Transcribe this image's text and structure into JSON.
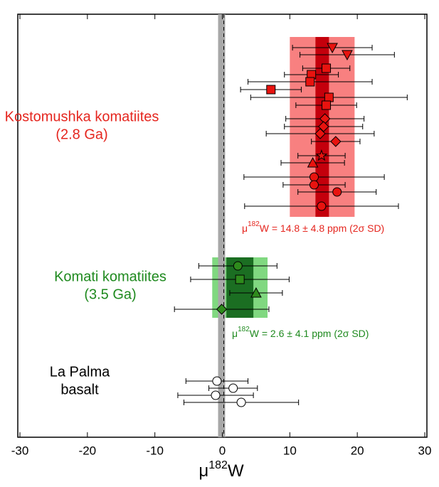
{
  "chart_data": {
    "type": "scatter",
    "xlabel": {
      "base": "μ",
      "sup": "182",
      "rest": "W"
    },
    "xlim": [
      -30,
      30
    ],
    "xticks": [
      -30,
      -20,
      -10,
      0,
      10,
      20,
      30
    ],
    "reference_line": 0,
    "groups": [
      {
        "name": [
          "Kostomushka komatiites",
          "(2.8 Ga)"
        ],
        "color": "#e8130f",
        "text_color": "#e5261f",
        "band": {
          "mean": 14.8,
          "sd": 4.8,
          "inner": 1.0,
          "color": "#f88080",
          "inner_color": "#c4000c"
        },
        "stat_label": {
          "base": "μ",
          "sup": "182",
          "rest": "W = 14.8 ± 4.8 ppm (2σ SD)"
        },
        "points": [
          {
            "marker": "triangle-down",
            "x": 16.3,
            "err": 5.9
          },
          {
            "marker": "triangle-down",
            "x": 18.5,
            "err": 7.0
          },
          {
            "marker": "square",
            "x": 15.4,
            "err": 3.5
          },
          {
            "marker": "square",
            "x": 13.2,
            "err": 4.0
          },
          {
            "marker": "square",
            "x": 13.0,
            "err": 9.2
          },
          {
            "marker": "square",
            "x": 7.2,
            "err": 4.5
          },
          {
            "marker": "square",
            "x": 15.8,
            "err": 11.6
          },
          {
            "marker": "square",
            "x": 15.4,
            "err": 4.5
          },
          {
            "marker": "diamond",
            "x": 15.2,
            "err": 5.8
          },
          {
            "marker": "diamond",
            "x": 15.0,
            "err": 5.8
          },
          {
            "marker": "diamond",
            "x": 14.5,
            "err": 8.0
          },
          {
            "marker": "diamond",
            "x": 16.8,
            "err": 3.6
          },
          {
            "marker": "star",
            "x": 14.7,
            "err": 3.5
          },
          {
            "marker": "triangle-up",
            "x": 13.4,
            "err": 4.7
          },
          {
            "marker": "circle",
            "x": 13.6,
            "err": 10.4
          },
          {
            "marker": "circle",
            "x": 13.6,
            "err": 4.6
          },
          {
            "marker": "circle",
            "x": 17.0,
            "err": 5.8
          },
          {
            "marker": "circle",
            "x": 14.7,
            "err": 11.4
          }
        ]
      },
      {
        "name": [
          "Komati komatiites",
          "(3.5 Ga)"
        ],
        "color": "#2e8b1c",
        "text_color": "#1f8a1f",
        "band": {
          "mean": 2.6,
          "sd": 4.1,
          "inner": 2.0,
          "color": "#80d880",
          "inner_color": "#1b6e22"
        },
        "stat_label": {
          "base": "μ",
          "sup": "182",
          "rest": "W = 2.6 ± 4.1 ppm (2σ SD)"
        },
        "points": [
          {
            "marker": "circle",
            "x": 2.3,
            "err": 5.8
          },
          {
            "marker": "square",
            "x": 2.6,
            "err": 7.3
          },
          {
            "marker": "triangle-up",
            "x": 5.0,
            "err": 3.9
          },
          {
            "marker": "diamond",
            "x": -0.1,
            "err": 7.0
          }
        ]
      },
      {
        "name": [
          "La Palma",
          "basalt"
        ],
        "color": "#ffffff",
        "text_color": "#000000",
        "points": [
          {
            "marker": "circle",
            "x": -0.8,
            "err": 4.6
          },
          {
            "marker": "circle",
            "x": 1.6,
            "err": 3.6
          },
          {
            "marker": "circle",
            "x": -1.0,
            "err": 5.6
          },
          {
            "marker": "circle",
            "x": 2.8,
            "err": 8.5
          }
        ]
      }
    ]
  }
}
